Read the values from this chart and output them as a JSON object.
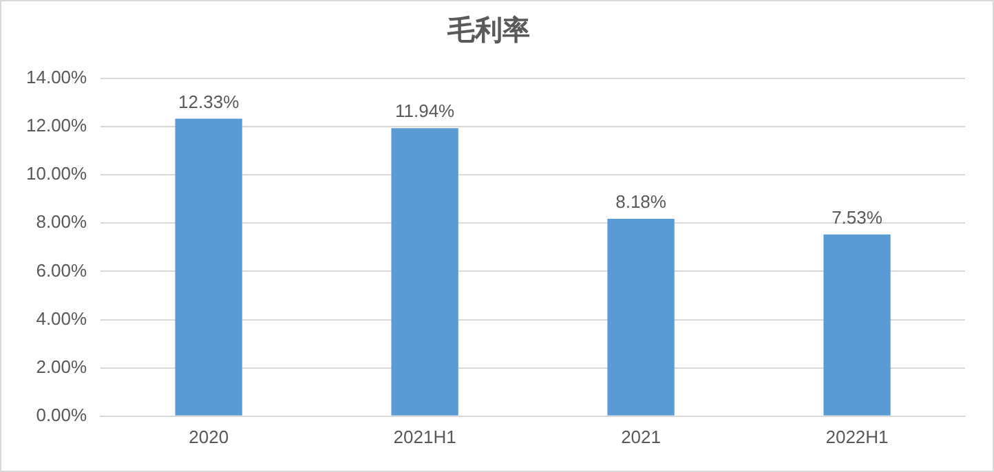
{
  "chart_data": {
    "type": "bar",
    "title": "毛利率",
    "categories": [
      "2020",
      "2021H1",
      "2021",
      "2022H1"
    ],
    "values": [
      12.33,
      11.94,
      8.18,
      7.53
    ],
    "value_labels": [
      "12.33%",
      "11.94%",
      "8.18%",
      "7.53%"
    ],
    "color": "#5b9bd5",
    "ylim": [
      0,
      14
    ],
    "yticks": [
      {
        "value": 0,
        "label": "0.00%"
      },
      {
        "value": 2,
        "label": "2.00%"
      },
      {
        "value": 4,
        "label": "4.00%"
      },
      {
        "value": 6,
        "label": "6.00%"
      },
      {
        "value": 8,
        "label": "8.00%"
      },
      {
        "value": 10,
        "label": "10.00%"
      },
      {
        "value": 12,
        "label": "12.00%"
      },
      {
        "value": 14,
        "label": "14.00%"
      }
    ],
    "grid": "y",
    "legend": false
  }
}
